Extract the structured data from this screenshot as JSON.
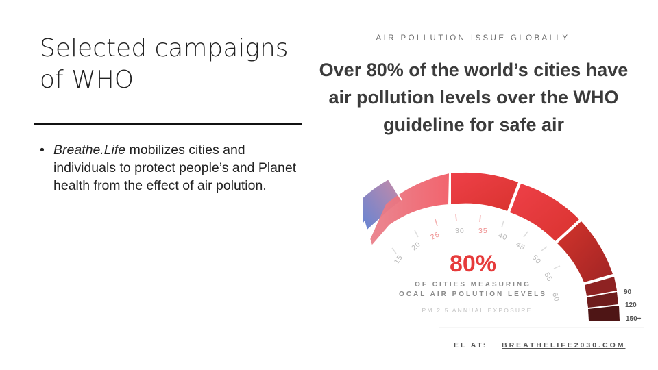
{
  "slide": {
    "title": "Selected campaigns of WHO",
    "bullets": [
      {
        "emphasis": "Breathe.Life",
        "text": " mobilizes cities and individuals to protect people’s and Planet health from the effect of air polution."
      }
    ]
  },
  "infographic": {
    "eyebrow": "AIR POLLUTION ISSUE GLOBALLY",
    "headline": "Over 80% of the world’s cities have air pollution levels over the WHO guideline for safe air",
    "gauge": {
      "value": "80%",
      "caption_line1": "OF CITIES MEASURING",
      "caption_line2": "OCAL AIR POLUTION LEVELS",
      "unit": "PM 2.5 ANNUAL EXPOSURE",
      "ticks": [
        "15",
        "20",
        "25",
        "30",
        "35",
        "40",
        "45",
        "50",
        "55",
        "60"
      ],
      "side_ticks": [
        "90",
        "120",
        "150+"
      ],
      "footer_prefix": "EL AT:",
      "footer_link": "BREATHELIFE2030.COM"
    },
    "colors": {
      "blue": "#6f8fd6",
      "pink": "#f27a86",
      "red": "#f0404c",
      "dark_red": "#c92a2a",
      "maroon": "#6b1c1c",
      "accent_text": "#e63b3b"
    }
  }
}
